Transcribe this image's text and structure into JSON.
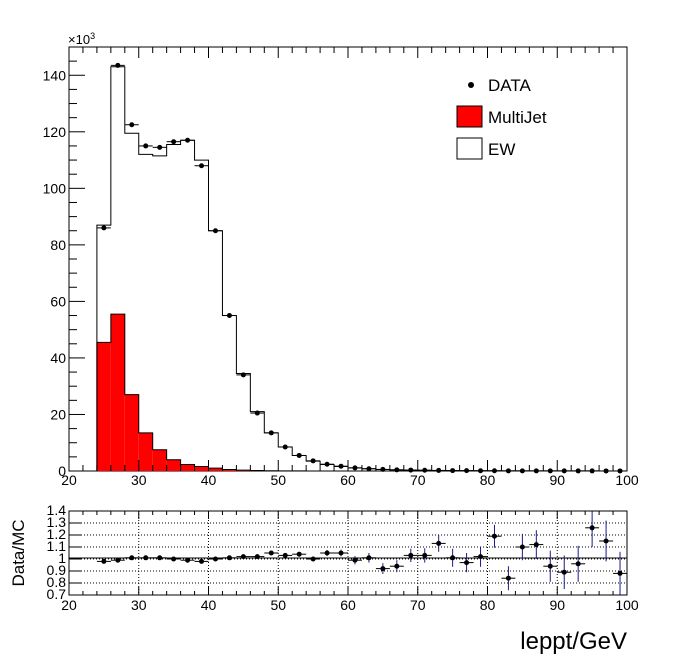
{
  "chart_data": {
    "type": "bar",
    "legend": {
      "placement": "top-right",
      "entries": [
        {
          "label": "DATA",
          "marker": "point"
        },
        {
          "label": "MultiJet",
          "marker": "box",
          "color": "#ff0000"
        },
        {
          "label": "EW",
          "marker": "box",
          "color": "#ffffff"
        }
      ]
    },
    "top": {
      "xlim": [
        20,
        100
      ],
      "ylim": [
        0,
        150000
      ],
      "ymultiplier_label": "×10",
      "ymultiplier_exp": "3",
      "xticks": [
        20,
        30,
        40,
        50,
        60,
        70,
        80,
        90,
        100
      ],
      "yticks": [
        0,
        20,
        40,
        60,
        80,
        100,
        120,
        140
      ],
      "bin_edges": [
        24,
        26,
        28,
        30,
        32,
        34,
        36,
        38,
        40,
        42,
        44,
        46,
        48,
        50,
        52,
        54,
        56,
        58,
        60,
        62,
        64,
        66,
        68,
        70,
        72,
        74,
        76,
        78,
        80,
        82,
        84,
        86,
        88,
        90,
        92,
        94,
        96,
        98,
        100
      ],
      "series": [
        {
          "name": "EW",
          "kind": "stacked-total",
          "values": [
            87000,
            143000,
            119500,
            112000,
            111500,
            115500,
            117000,
            110000,
            85000,
            55000,
            34500,
            21000,
            13500,
            8500,
            5500,
            3500,
            2300,
            1600,
            1100,
            800,
            550,
            420,
            320,
            250,
            190,
            150,
            120,
            100,
            80,
            65,
            55,
            45,
            38,
            32,
            28,
            24,
            20,
            18
          ]
        },
        {
          "name": "MultiJet",
          "values": [
            45500,
            55500,
            27000,
            13500,
            7500,
            4000,
            2300,
            1600,
            1000,
            550,
            300,
            180,
            100,
            60,
            35,
            20,
            10,
            6,
            4,
            3,
            2,
            1,
            1,
            1,
            0,
            0,
            0,
            0,
            0,
            0,
            0,
            0,
            0,
            0,
            0,
            0,
            0,
            0
          ]
        },
        {
          "name": "DATA",
          "values": [
            86000,
            143500,
            122500,
            115000,
            114500,
            116500,
            117000,
            108000,
            85000,
            55000,
            34000,
            20500,
            13500,
            8500,
            5500,
            3600,
            2400,
            1700,
            1100,
            800,
            560,
            420,
            330,
            260,
            200,
            150,
            120,
            100,
            80,
            65,
            55,
            45,
            38,
            32,
            28,
            24,
            20,
            18
          ]
        }
      ]
    },
    "ratio": {
      "ylabel": "Data/MC",
      "xlabel": "leppt/GeV",
      "xlim": [
        20,
        100
      ],
      "ylim": [
        0.7,
        1.4
      ],
      "xticks": [
        20,
        30,
        40,
        50,
        60,
        70,
        80,
        90,
        100
      ],
      "ytick_labels": [
        "0.7",
        "0.8",
        "0.9",
        "1",
        "1.1",
        "1.2",
        "1.3",
        "1.4"
      ],
      "reference_line": 1,
      "grid": true,
      "x": [
        25,
        27,
        29,
        31,
        33,
        35,
        37,
        39,
        41,
        43,
        45,
        47,
        49,
        51,
        53,
        55,
        57,
        59,
        61,
        63,
        65,
        67,
        69,
        71,
        73,
        75,
        77,
        79,
        81,
        83,
        85,
        87,
        89,
        91,
        93,
        95,
        97,
        99
      ],
      "values": [
        0.98,
        0.99,
        1.01,
        1.01,
        1.01,
        1.0,
        0.99,
        0.98,
        1.0,
        1.01,
        1.02,
        1.02,
        1.05,
        1.03,
        1.04,
        1.0,
        1.05,
        1.05,
        0.99,
        1.01,
        0.92,
        0.94,
        1.03,
        1.03,
        1.13,
        1.01,
        0.97,
        1.02,
        1.19,
        0.84,
        1.1,
        1.12,
        0.94,
        0.89,
        0.96,
        1.26,
        1.15,
        0.88
      ],
      "errors": [
        0.005,
        0.005,
        0.005,
        0.005,
        0.005,
        0.005,
        0.005,
        0.005,
        0.005,
        0.006,
        0.008,
        0.01,
        0.012,
        0.015,
        0.018,
        0.02,
        0.025,
        0.028,
        0.035,
        0.04,
        0.045,
        0.05,
        0.055,
        0.06,
        0.07,
        0.075,
        0.08,
        0.085,
        0.095,
        0.1,
        0.11,
        0.12,
        0.13,
        0.14,
        0.15,
        0.16,
        0.17,
        0.18
      ]
    }
  }
}
